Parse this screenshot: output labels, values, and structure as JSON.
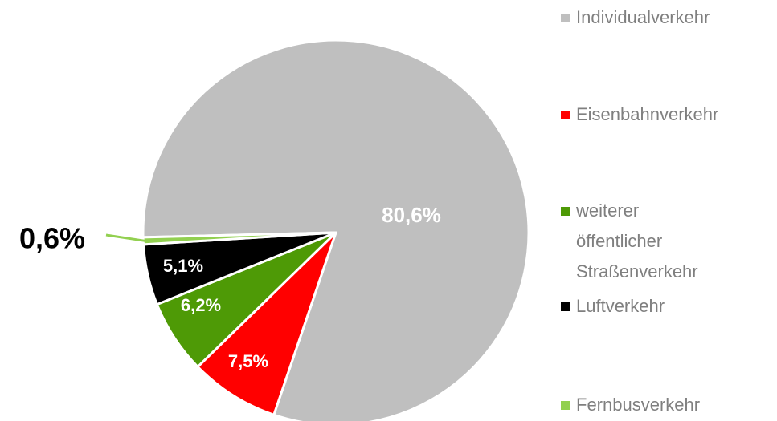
{
  "chart_data": {
    "type": "pie",
    "categories": [
      "Individualverkehr",
      "Eisenbahnverkehr",
      "weiterer öffentlicher Straßenverkehr",
      "Luftverkehr",
      "Fernbusverkehr"
    ],
    "values": [
      80.6,
      7.5,
      6.2,
      5.1,
      0.6
    ],
    "value_labels": [
      "80,6%",
      "7,5%",
      "6,2%",
      "5,1%",
      "0,6%"
    ],
    "colors": [
      "#bfbfbf",
      "#ff0000",
      "#4e9a06",
      "#000000",
      "#92d050"
    ],
    "legend": "right"
  }
}
